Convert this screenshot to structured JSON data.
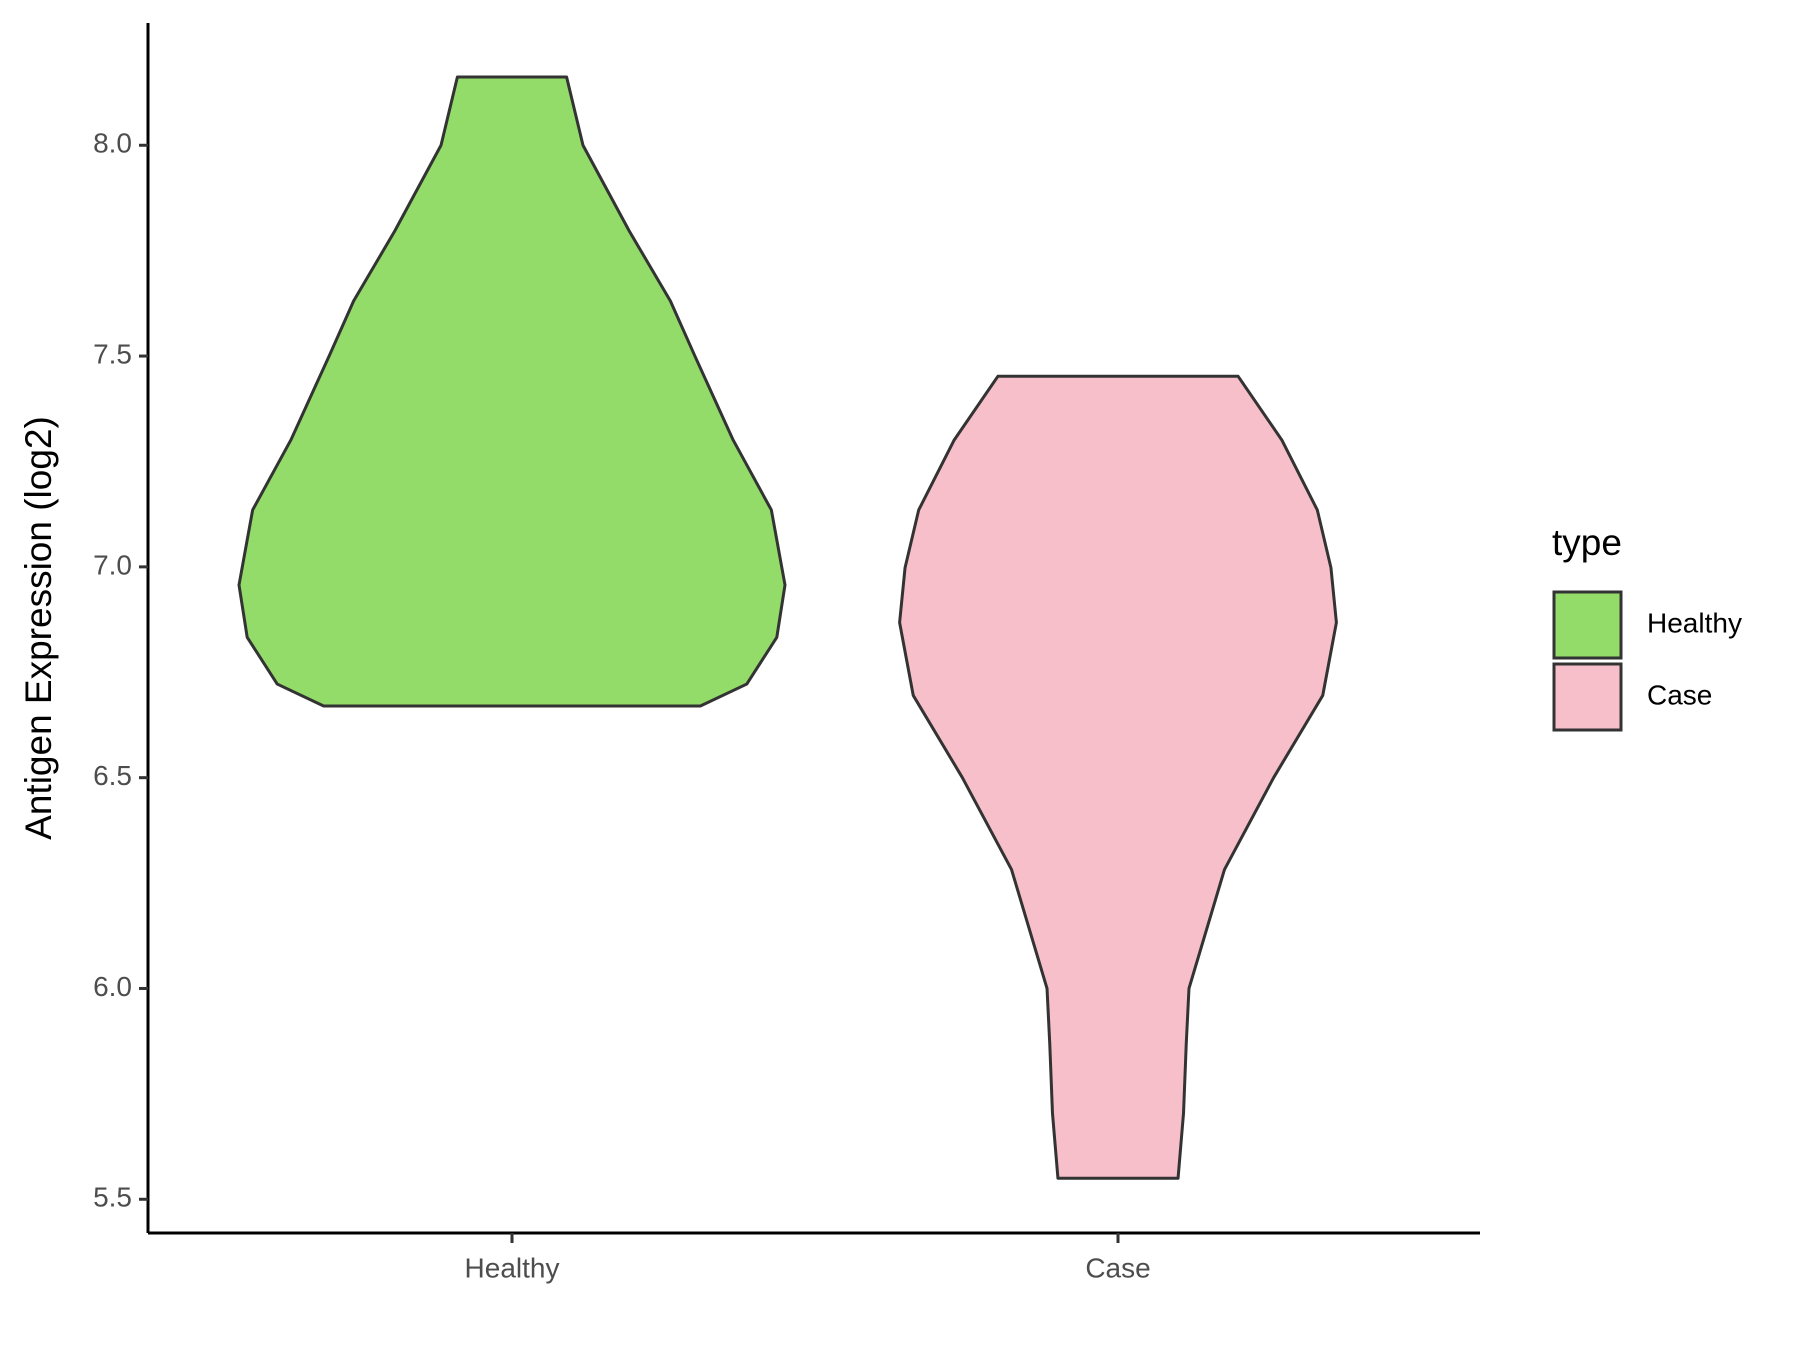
{
  "chart_data": {
    "type": "violin",
    "ylabel": "Antigen Expression (log2)",
    "categories": [
      "Healthy",
      "Case"
    ],
    "legend_title": "type",
    "legend_position": "right",
    "ylim": [
      5.42,
      8.29
    ],
    "yticks": [
      {
        "value": 5.5,
        "label": "5.5"
      },
      {
        "value": 6,
        "label": "6.0"
      },
      {
        "value": 6.5,
        "label": "6.5"
      },
      {
        "value": 7,
        "label": "7.0"
      },
      {
        "value": 7.5,
        "label": "7.5"
      },
      {
        "value": 8,
        "label": "8.0"
      }
    ],
    "series": [
      {
        "name": "Healthy",
        "color": "#93dc6a",
        "y": [
          8.162,
          8.0,
          7.796,
          7.631,
          7.5,
          7.301,
          7.135,
          6.957,
          6.833,
          6.722,
          6.67
        ],
        "widths": [
          0.2,
          0.26,
          0.43,
          0.58,
          0.67,
          0.81,
          0.95,
          1.0,
          0.97,
          0.86,
          0.69
        ]
      },
      {
        "name": "Case",
        "color": "#f7bfca",
        "y": [
          7.452,
          7.301,
          7.135,
          6.998,
          6.868,
          6.695,
          6.5,
          6.282,
          6.0,
          5.869,
          5.704,
          5.55
        ],
        "widths": [
          0.44,
          0.6,
          0.73,
          0.78,
          0.8,
          0.75,
          0.57,
          0.39,
          0.26,
          0.25,
          0.24,
          0.22
        ]
      }
    ]
  }
}
